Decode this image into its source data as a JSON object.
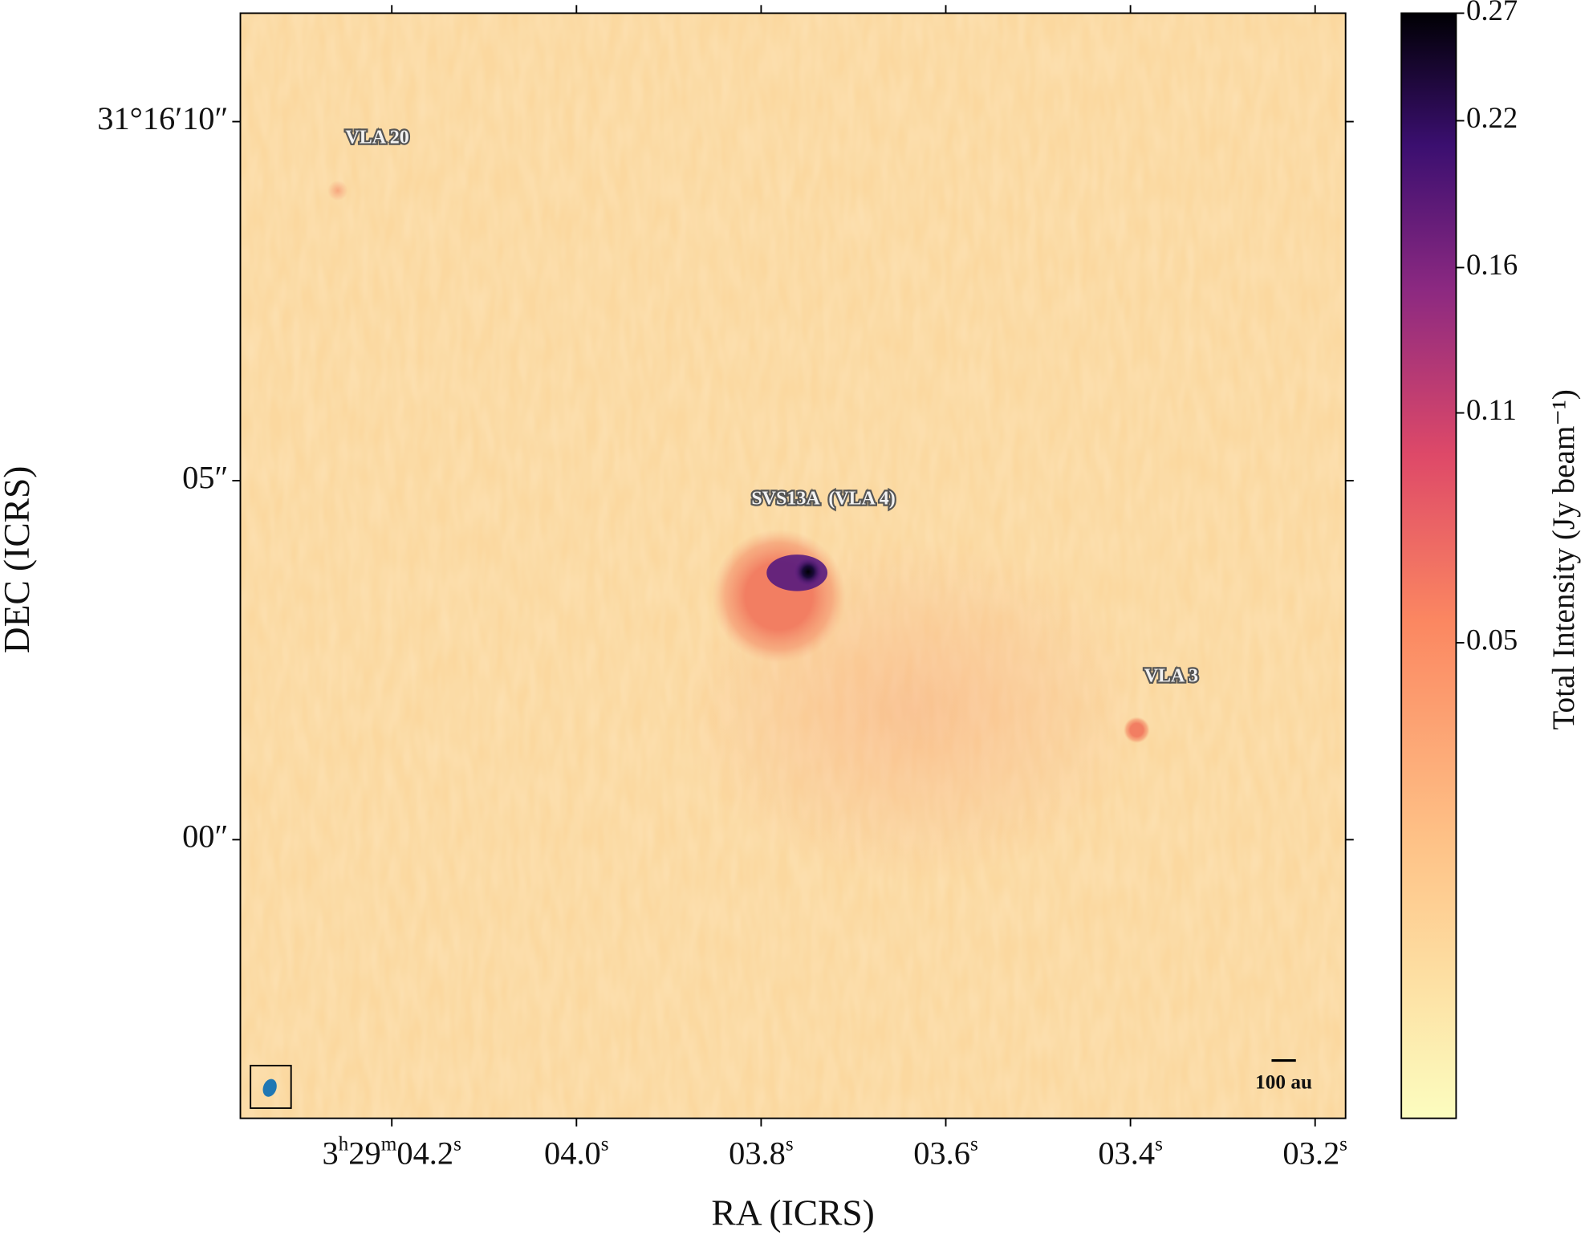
{
  "chart_data": {
    "type": "image",
    "xlabel": "RA (ICRS)",
    "ylabel": "DEC (ICRS)",
    "xlim": [
      4.364,
      3.167
    ],
    "xticks": [
      {
        "value": 4.2,
        "label": "3h29m04.2s"
      },
      {
        "value": 4.0,
        "label": "04.0s"
      },
      {
        "value": 3.8,
        "label": "03.8s"
      },
      {
        "value": 3.6,
        "label": "03.6s"
      },
      {
        "value": 3.4,
        "label": "03.4s"
      },
      {
        "value": 3.2,
        "label": "03.2s"
      }
    ],
    "ylim": [
      -3.88,
      11.51
    ],
    "yticks": [
      {
        "value": 10,
        "label": "31°16′10″"
      },
      {
        "value": 5,
        "label": "05″"
      },
      {
        "value": 0,
        "label": "00″"
      }
    ],
    "colorbar": {
      "label": "Total Intensity (Jy beam⁻¹)",
      "stretch": "sqrt",
      "clim": [
        0,
        0.27
      ],
      "ticks": [
        0.05,
        0.11,
        0.16,
        0.22,
        0.27
      ]
    },
    "annotations": [
      "VLA 20",
      "SVS13A  (VLA 4)",
      "VLA 3"
    ],
    "scalebar": "100 au"
  }
}
